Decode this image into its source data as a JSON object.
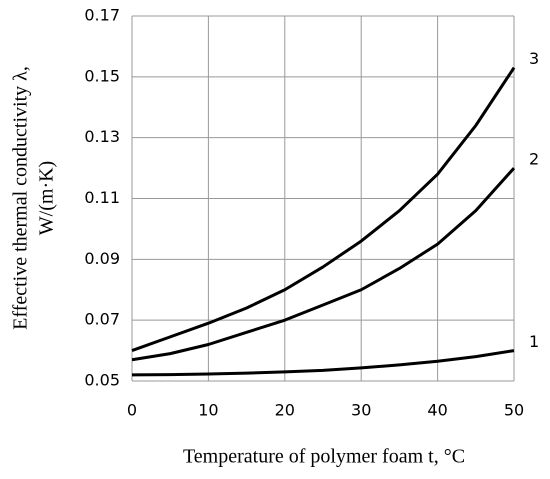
{
  "chart_data": {
    "type": "line",
    "ylabel": [
      "Effective thermal conductivity  λ,",
      "W/(m·K)"
    ],
    "xlabel": "Temperature of polymer foam t, °C",
    "x": [
      0,
      5,
      10,
      15,
      20,
      25,
      30,
      35,
      40,
      45,
      50
    ],
    "series": [
      {
        "name": "1",
        "color": "#000000",
        "values": [
          0.052,
          0.0521,
          0.0523,
          0.0526,
          0.053,
          0.0535,
          0.0543,
          0.0553,
          0.0565,
          0.058,
          0.06
        ]
      },
      {
        "name": "2",
        "color": "#000000",
        "values": [
          0.057,
          0.059,
          0.062,
          0.066,
          0.07,
          0.075,
          0.08,
          0.087,
          0.095,
          0.106,
          0.12
        ]
      },
      {
        "name": "3",
        "color": "#000000",
        "values": [
          0.06,
          0.0645,
          0.069,
          0.074,
          0.08,
          0.0875,
          0.096,
          0.106,
          0.118,
          0.134,
          0.153
        ]
      }
    ],
    "xlim": [
      0,
      50
    ],
    "xticks": [
      0,
      10,
      20,
      30,
      40,
      50
    ],
    "ylim": [
      0.05,
      0.17
    ],
    "yticks": [
      0.05,
      0.07,
      0.09,
      0.11,
      0.13,
      0.15,
      0.17
    ],
    "grid": true
  }
}
